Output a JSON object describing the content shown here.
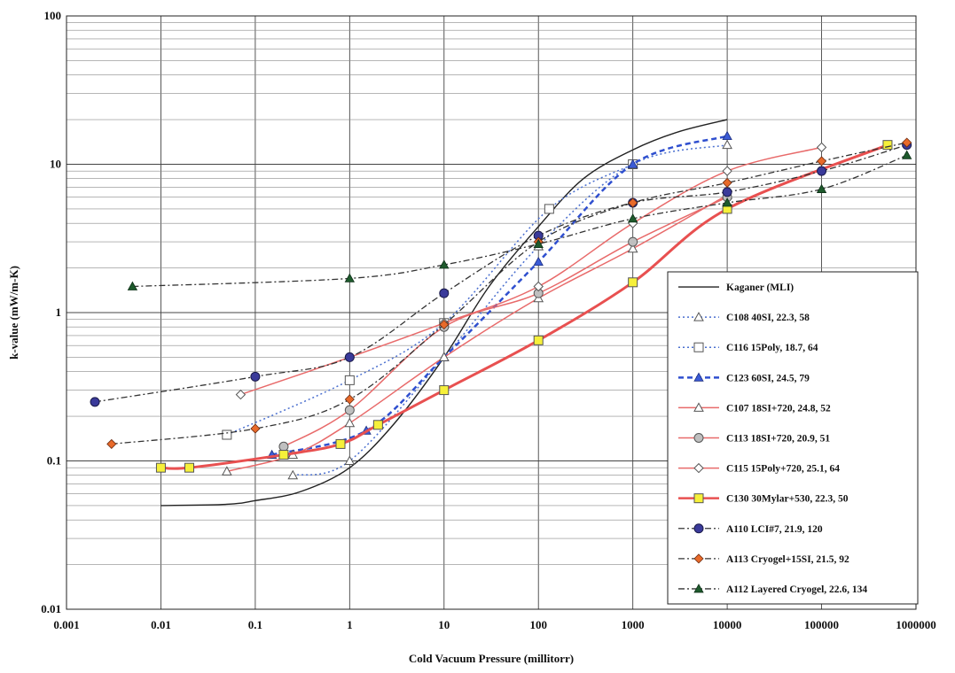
{
  "chart_data": {
    "type": "line",
    "xlabel": "Cold Vacuum Pressure  (millitorr)",
    "ylabel": "k-value (mW/m-K)",
    "x_scale": "log",
    "y_scale": "log",
    "xlim": [
      0.001,
      1000000
    ],
    "ylim": [
      0.01,
      100
    ],
    "grid": true,
    "legend_placement": "bottom-right",
    "x_ticks": [
      "0.001",
      "0.01",
      "0.1",
      "1",
      "10",
      "100",
      "1000",
      "10000",
      "100000",
      "1000000"
    ],
    "y_ticks": [
      "0.01",
      "0.1",
      "1",
      "10",
      "100"
    ],
    "series": [
      {
        "name": "Kaganer (MLI)",
        "color": "#222222",
        "dash": "solid",
        "marker": "none",
        "width": 1.4,
        "smooth": true,
        "x": [
          0.01,
          0.05,
          0.1,
          0.3,
          1,
          3,
          10,
          30,
          100,
          300,
          1000,
          3000,
          10000
        ],
        "y": [
          0.05,
          0.051,
          0.054,
          0.062,
          0.09,
          0.18,
          0.5,
          1.5,
          3.8,
          8.0,
          12.5,
          16.5,
          20
        ]
      },
      {
        "name": "C108 40SI, 22.3, 58",
        "color": "#4a6fcf",
        "dash": "2,3",
        "marker": "triangle-open",
        "width": 1.5,
        "x": [
          0.25,
          1,
          10,
          100,
          1000,
          10000
        ],
        "y": [
          0.08,
          0.1,
          0.5,
          2.8,
          10,
          13.5
        ]
      },
      {
        "name": "C116 15Poly, 18.7, 64",
        "color": "#4a6fcf",
        "dash": "2,3",
        "marker": "square-open",
        "width": 1.5,
        "x": [
          0.05,
          1,
          10,
          130,
          1000
        ],
        "y": [
          0.15,
          0.35,
          0.85,
          5,
          10
        ]
      },
      {
        "name": "C123 60SI, 24.5, 79",
        "color": "#2f4fcf",
        "dash": "6,4",
        "marker": "triangle-filled",
        "width": 2.5,
        "x": [
          0.15,
          1.5,
          10,
          100,
          1000,
          10000
        ],
        "y": [
          0.11,
          0.16,
          0.5,
          2.2,
          10,
          15.5
        ]
      },
      {
        "name": "C107 18SI+720, 24.8, 52",
        "color": "#e86a6a",
        "dash": "solid",
        "marker": "triangle-open",
        "width": 1.5,
        "x": [
          0.05,
          0.25,
          1,
          10,
          100,
          1000,
          10000
        ],
        "y": [
          0.085,
          0.11,
          0.18,
          0.5,
          1.25,
          2.7,
          6.2
        ]
      },
      {
        "name": "C113 18SI+720, 20.9, 51",
        "color": "#e86a6a",
        "dash": "solid",
        "marker": "circle-open",
        "width": 1.5,
        "x": [
          0.2,
          1,
          10,
          100,
          1000,
          10000
        ],
        "y": [
          0.125,
          0.22,
          0.8,
          1.35,
          3,
          6
        ]
      },
      {
        "name": "C115 15Poly+720, 25.1, 64",
        "color": "#e86a6a",
        "dash": "solid",
        "marker": "diamond-open",
        "width": 1.5,
        "x": [
          0.07,
          1,
          10,
          100,
          1000,
          10000,
          100000
        ],
        "y": [
          0.28,
          0.5,
          0.85,
          1.5,
          4,
          9,
          13
        ]
      },
      {
        "name": "C130 30Mylar+530, 22.3, 50",
        "color": "#e85050",
        "dash": "solid",
        "marker": "square-yellow",
        "width": 3,
        "x": [
          0.01,
          0.02,
          0.2,
          0.8,
          2,
          10,
          100,
          1000,
          10000,
          500000
        ],
        "y": [
          0.09,
          0.09,
          0.11,
          0.13,
          0.175,
          0.3,
          0.65,
          1.6,
          5,
          13.5
        ]
      },
      {
        "name": "A110 LCI#7, 21.9, 120",
        "color": "#333333",
        "dash": "7,3,2,3",
        "marker": "circle-navy",
        "width": 1.3,
        "x": [
          0.002,
          0.1,
          1,
          10,
          100,
          1000,
          10000,
          100000,
          800000
        ],
        "y": [
          0.25,
          0.37,
          0.5,
          1.35,
          3.3,
          5.5,
          6.5,
          9,
          13.5
        ]
      },
      {
        "name": "A113 Cryogel+15SI, 21.5, 92",
        "color": "#333333",
        "dash": "7,3,2,3",
        "marker": "diamond-orange",
        "width": 1.3,
        "x": [
          0.003,
          0.1,
          1,
          10,
          100,
          1000,
          10000,
          100000,
          800000
        ],
        "y": [
          0.13,
          0.165,
          0.26,
          0.83,
          3,
          5.5,
          7.5,
          10.5,
          14
        ]
      },
      {
        "name": "A112 Layered Cryogel, 22.6, 134",
        "color": "#333333",
        "dash": "7,3,2,3",
        "marker": "triangle-green",
        "width": 1.3,
        "x": [
          0.005,
          1,
          10,
          100,
          1000,
          10000,
          100000,
          800000
        ],
        "y": [
          1.5,
          1.7,
          2.1,
          2.9,
          4.3,
          5.5,
          6.8,
          11.5
        ]
      }
    ]
  }
}
